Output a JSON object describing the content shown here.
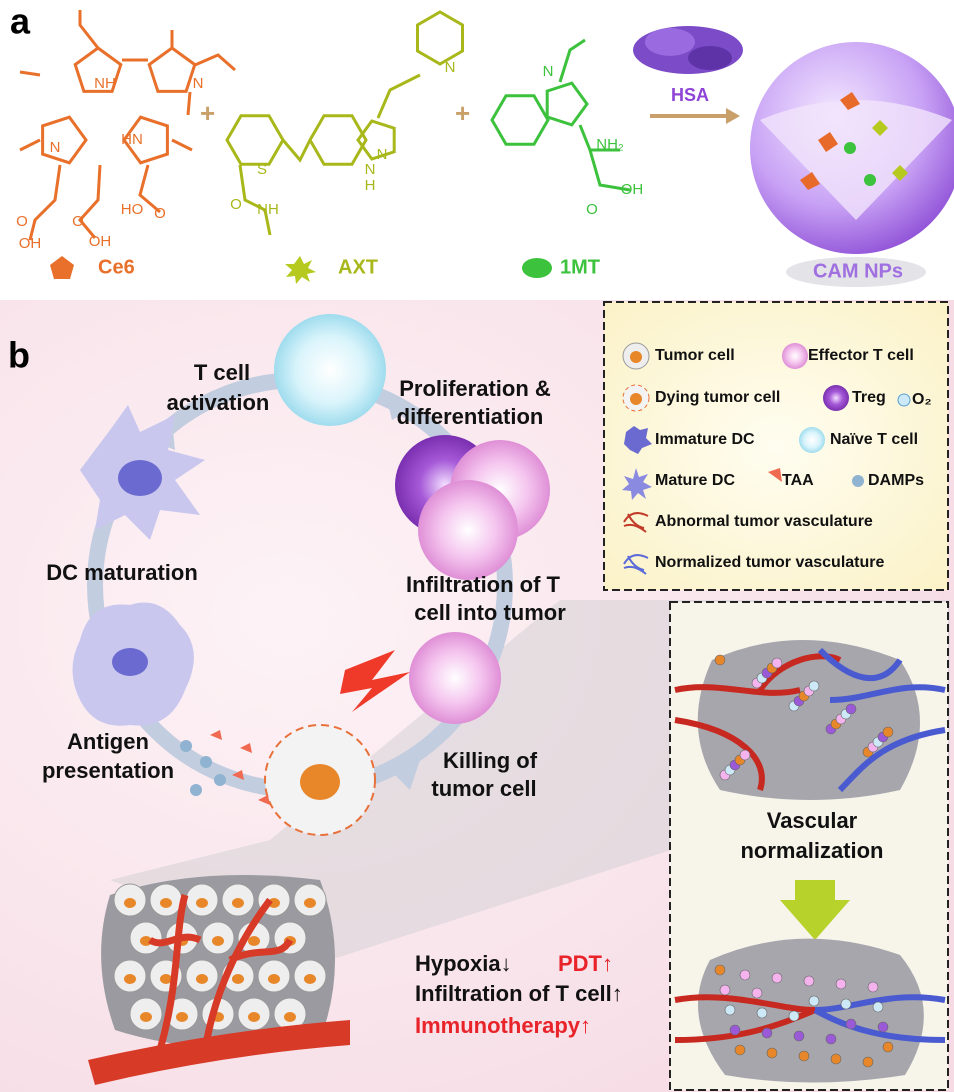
{
  "panel_a": {
    "label": "a",
    "molecules": [
      {
        "name": "Ce6",
        "atoms": [
          "NH",
          "N",
          "N",
          "HN",
          "O",
          "OH",
          "O",
          "OH",
          "HO",
          "O"
        ]
      },
      {
        "name": "AXT",
        "atoms": [
          "N",
          "S",
          "N",
          "N",
          "H",
          "O",
          "NH"
        ]
      },
      {
        "name": "1MT",
        "atoms": [
          "N",
          "NH₂",
          "O",
          "OH"
        ]
      }
    ],
    "plus": [
      "+",
      "+"
    ],
    "carrier": "HSA",
    "product": "CAM NPs"
  },
  "panel_b": {
    "label": "b",
    "cycle": {
      "t_cell_activation": [
        "T cell",
        "activation"
      ],
      "proliferation": [
        "Proliferation &",
        "differentiation"
      ],
      "dc_maturation": [
        "DC maturation"
      ],
      "infiltration": [
        "Infiltration of T",
        "cell into tumor"
      ],
      "antigen_presentation": [
        "Antigen",
        "presentation"
      ],
      "killing": [
        "Killing of",
        "tumor cell"
      ]
    },
    "legend": {
      "items": [
        "Tumor cell",
        "Effector T cell",
        "Dying tumor cell",
        "Treg",
        "O₂",
        "Immature DC",
        "Naïve T cell",
        "Mature DC",
        "TAA",
        "DAMPs",
        "Abnormal tumor vasculature",
        "Normalized tumor vasculature"
      ]
    },
    "vascular_label": [
      "Vascular",
      "normalization"
    ],
    "outcomes": [
      {
        "text": "Hypoxia",
        "arrow": "↓"
      },
      {
        "text": "PDT",
        "arrow": "↑"
      },
      {
        "text": "Infiltration of T cell",
        "arrow": "↑"
      },
      {
        "text": "Immunotherapy",
        "arrow": "↑"
      }
    ]
  }
}
